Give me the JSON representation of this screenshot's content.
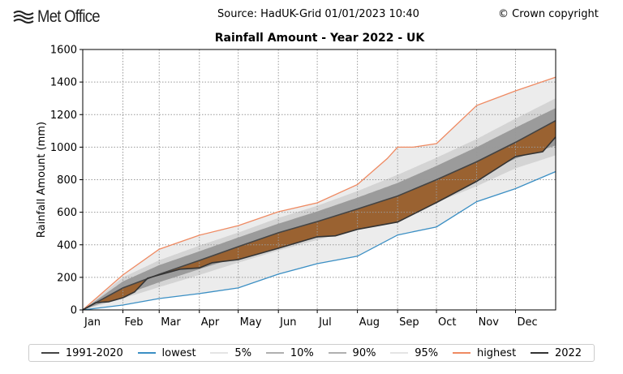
{
  "header": {
    "logo": "Met Office",
    "source": "Source: HadUK-Grid 01/01/2023 10:40",
    "copyright": "© Crown copyright"
  },
  "chart_data": {
    "type": "line",
    "title": "Rainfall Amount - Year 2022 - UK",
    "xlabel": "",
    "ylabel": "Rainfall Amount (mm)",
    "ylim": [
      0,
      1600
    ],
    "yticks": [
      "0",
      "200",
      "400",
      "600",
      "800",
      "1000",
      "1200",
      "1400",
      "1600"
    ],
    "xlim_day_of_year": [
      0,
      365
    ],
    "month_ticks": [
      "Jan",
      "Feb",
      "Mar",
      "Apr",
      "May",
      "Jun",
      "Jul",
      "Aug",
      "Sep",
      "Oct",
      "Nov",
      "Dec"
    ],
    "month_start_days": [
      0,
      31,
      59,
      90,
      120,
      151,
      181,
      212,
      243,
      273,
      304,
      334,
      365
    ],
    "grid": true,
    "legend_placement": "bottom",
    "bands": {
      "x": [
        0,
        31,
        59,
        90,
        120,
        151,
        181,
        212,
        243,
        273,
        304,
        334,
        365
      ],
      "p5": [
        0,
        70,
        140,
        215,
        290,
        365,
        430,
        500,
        570,
        660,
        760,
        870,
        950
      ],
      "p10": [
        0,
        90,
        170,
        250,
        325,
        400,
        470,
        545,
        620,
        715,
        815,
        930,
        1010
      ],
      "p90": [
        0,
        175,
        275,
        360,
        445,
        530,
        605,
        690,
        780,
        885,
        1000,
        1120,
        1240
      ],
      "p95": [
        0,
        200,
        305,
        395,
        475,
        565,
        640,
        730,
        830,
        935,
        1050,
        1175,
        1300
      ]
    },
    "series": [
      {
        "name": "1991-2020",
        "color": "#444444",
        "x": [
          0,
          31,
          59,
          90,
          120,
          151,
          181,
          212,
          243,
          273,
          304,
          334,
          365
        ],
        "values": [
          0,
          135,
          219,
          304,
          389,
          474,
          543,
          620,
          700,
          800,
          910,
          1030,
          1163
        ]
      },
      {
        "name": "lowest",
        "color": "#3b8fc4",
        "x": [
          0,
          31,
          59,
          90,
          120,
          151,
          181,
          212,
          243,
          273,
          304,
          334,
          365
        ],
        "values": [
          0,
          30,
          70,
          100,
          135,
          220,
          284,
          330,
          460,
          510,
          665,
          745,
          850
        ]
      },
      {
        "name": "highest",
        "color": "#ef8a62",
        "x": [
          0,
          31,
          59,
          90,
          120,
          151,
          181,
          212,
          235,
          243,
          255,
          273,
          304,
          334,
          365
        ],
        "values": [
          0,
          215,
          373,
          459,
          518,
          603,
          658,
          770,
          930,
          1000,
          1000,
          1022,
          1256,
          1346,
          1430
        ]
      },
      {
        "name": "2022",
        "color": "#333333",
        "x": [
          0,
          10,
          20,
          31,
          40,
          50,
          59,
          75,
          90,
          100,
          120,
          151,
          181,
          195,
          212,
          243,
          273,
          304,
          334,
          355,
          365
        ],
        "values": [
          0,
          45,
          50,
          75,
          110,
          195,
          215,
          250,
          258,
          290,
          309,
          379,
          449,
          455,
          495,
          540,
          660,
          790,
          942,
          972,
          1062
        ]
      }
    ],
    "legend": [
      {
        "label": "1991-2020",
        "color": "#444444"
      },
      {
        "label": "lowest",
        "color": "#3b8fc4"
      },
      {
        "label": "5%",
        "color": "#e4e4e4"
      },
      {
        "label": "10%",
        "color": "#b0b0b0"
      },
      {
        "label": "90%",
        "color": "#b0b0b0"
      },
      {
        "label": "95%",
        "color": "#e4e4e4"
      },
      {
        "label": "highest",
        "color": "#ef8a62"
      },
      {
        "label": "2022",
        "color": "#333333"
      }
    ],
    "fill_colors": {
      "range": "#ececec",
      "p5_p95": "#d4d4d4",
      "p10_p90": "#9b9b9b",
      "anomaly": "#9a6231"
    }
  }
}
